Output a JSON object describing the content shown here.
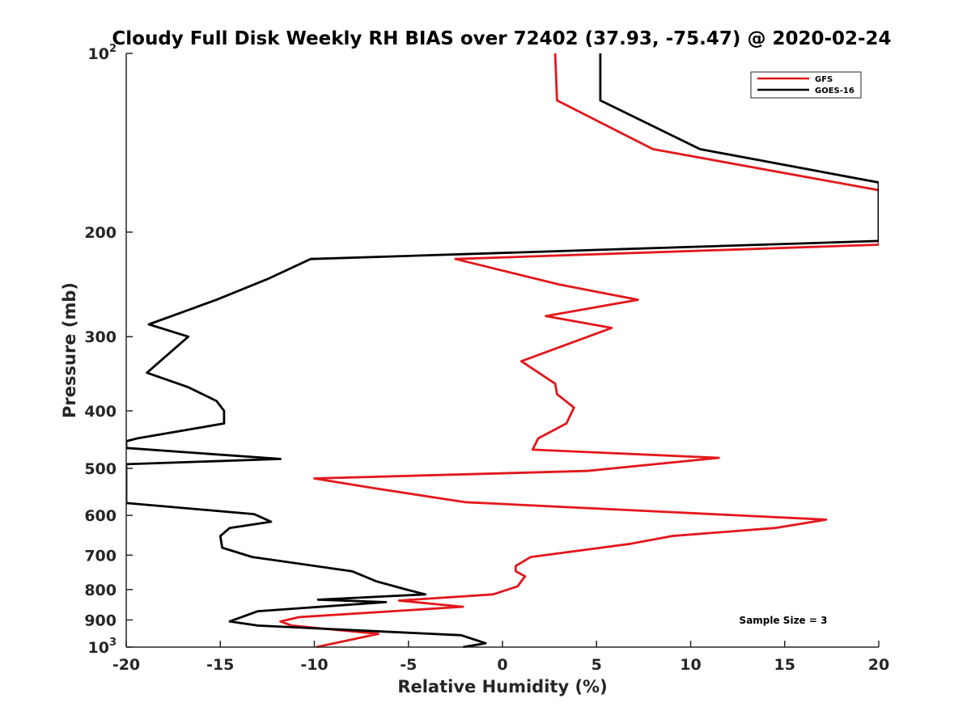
{
  "chart_data": {
    "type": "line",
    "title": "Cloudy Full Disk Weekly RH BIAS over 72402 (37.93, -75.47) @ 2020-02-24",
    "xlabel": "Relative Humidity (%)",
    "ylabel": "Pressure (mb)",
    "xlim": [
      -20,
      20
    ],
    "ylim": [
      100,
      1000
    ],
    "y_scale": "log",
    "y_reversed": true,
    "grid": false,
    "legend_position": "top-right",
    "x_ticks": [
      -20,
      -15,
      -10,
      -5,
      0,
      5,
      10,
      15,
      20
    ],
    "x_tick_labels": [
      "-20",
      "-15",
      "-10",
      "-5",
      "0",
      "5",
      "10",
      "15",
      "20"
    ],
    "y_ticks": [
      {
        "value": 100,
        "base": "10",
        "exp": "2"
      },
      {
        "value": 200,
        "label": "200"
      },
      {
        "value": 300,
        "label": "300"
      },
      {
        "value": 400,
        "label": "400"
      },
      {
        "value": 500,
        "label": "500"
      },
      {
        "value": 600,
        "label": "600"
      },
      {
        "value": 700,
        "label": "700"
      },
      {
        "value": 800,
        "label": "800"
      },
      {
        "value": 900,
        "label": "900"
      },
      {
        "value": 1000,
        "base": "10",
        "exp": "3"
      }
    ],
    "annotation": "Sample Size = 3",
    "series": [
      {
        "name": "GFS",
        "color": "#e3171b",
        "x": [
          2.8,
          2.9,
          8.0,
          20,
          20,
          -2.5,
          3.0,
          7.2,
          2.3,
          5.8,
          1.0,
          2.8,
          2.9,
          3.8,
          3.4,
          1.9,
          1.6,
          11.5,
          4.5,
          -10.0,
          -6.8,
          -2.0,
          17.2,
          14.5,
          9.0,
          6.8,
          1.5,
          0.7,
          0.7,
          1.2,
          0.8,
          -0.5,
          -5.5,
          -2.1,
          -10.8,
          -11.8,
          -11.2,
          -6.6,
          -9.9
        ],
        "y": [
          100,
          120,
          145,
          170,
          210,
          222,
          245,
          260,
          277,
          290,
          330,
          360,
          375,
          395,
          420,
          445,
          465,
          480,
          505,
          520,
          540,
          570,
          610,
          630,
          650,
          670,
          705,
          730,
          745,
          760,
          790,
          815,
          835,
          855,
          890,
          905,
          920,
          950,
          1000
        ]
      },
      {
        "name": "GOES-16",
        "color": "#000000",
        "x": [
          5.2,
          5.2,
          10.5,
          20,
          20,
          -10.2,
          -12.5,
          -15.2,
          -18.8,
          -16.7,
          -18.9,
          -16.7,
          -15.2,
          -14.8,
          -14.8,
          -19.4,
          -20,
          -20,
          -11.8,
          -20,
          -20,
          -13.2,
          -12.3,
          -14.5,
          -15.0,
          -14.9,
          -13.3,
          -8.0,
          -6.7,
          -5.1,
          -4.1,
          -9.8,
          -6.2,
          -13.0,
          -14.5,
          -13.0,
          -2.2,
          -0.9,
          -2.1
        ],
        "y": [
          100,
          120,
          145,
          165,
          207,
          222,
          240,
          260,
          286,
          300,
          345,
          365,
          385,
          400,
          420,
          445,
          450,
          462,
          482,
          492,
          572,
          597,
          615,
          630,
          650,
          680,
          705,
          745,
          775,
          800,
          815,
          832,
          840,
          870,
          905,
          920,
          955,
          985,
          1000
        ]
      }
    ]
  }
}
